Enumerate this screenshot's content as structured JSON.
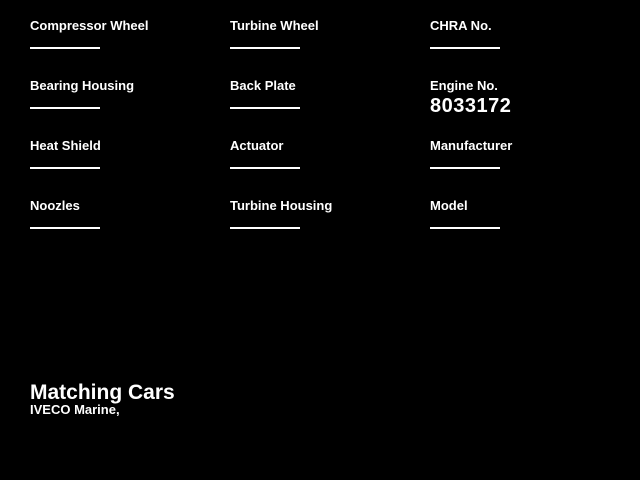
{
  "window": {
    "background_color": "#000000",
    "text_color": "#ffffff"
  },
  "form": {
    "columns": [
      {
        "fields": [
          {
            "label": "Compressor Wheel",
            "value": ""
          },
          {
            "label": "Bearing Housing",
            "value": ""
          },
          {
            "label": "Heat Shield",
            "value": ""
          },
          {
            "label": "Noozles",
            "value": ""
          }
        ]
      },
      {
        "fields": [
          {
            "label": "Turbine Wheel",
            "value": ""
          },
          {
            "label": "Back Plate",
            "value": ""
          },
          {
            "label": "Actuator",
            "value": ""
          },
          {
            "label": "Turbine Housing",
            "value": ""
          }
        ]
      },
      {
        "fields": [
          {
            "label": "CHRA No.",
            "value": ""
          },
          {
            "label": "Engine No.",
            "value": "8033172"
          },
          {
            "label": "Manufacturer",
            "value": ""
          },
          {
            "label": "Model",
            "value": ""
          }
        ]
      }
    ]
  },
  "footer": {
    "heading": "Matching Cars",
    "subtext": "IVECO Marine,"
  }
}
